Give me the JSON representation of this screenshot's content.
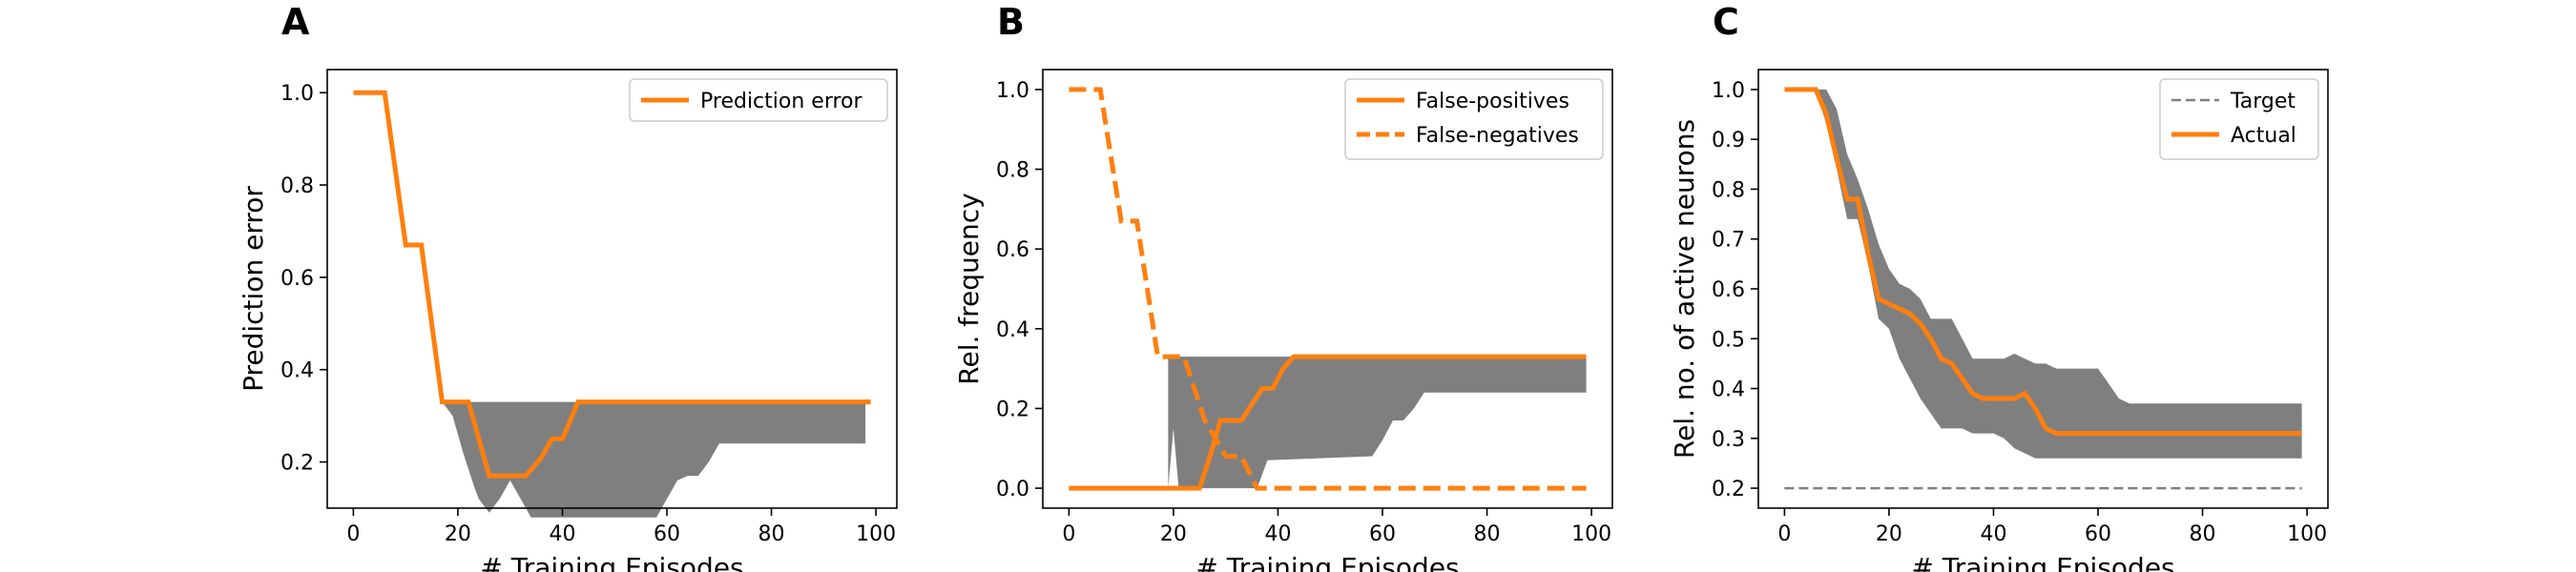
{
  "colors": {
    "series": "#ff7f0e",
    "band": "#7f7f7f",
    "target": "#808080"
  },
  "chart_data": [
    {
      "type": "line",
      "panel_label": "A",
      "xlabel": "# Training Episodes",
      "ylabel": "Prediction error",
      "xlim": [
        -5,
        104
      ],
      "ylim": [
        0.1,
        1.05
      ],
      "xticks": [
        0,
        20,
        40,
        60,
        80,
        100
      ],
      "yticks": [
        0.2,
        0.4,
        0.6,
        0.8,
        1.0
      ],
      "ytick_labels": [
        "0.2",
        "0.4",
        "0.6",
        "0.8",
        "1.0"
      ],
      "legend_position": "top-right",
      "bands": [
        {
          "x": [
            17,
            19,
            21,
            23,
            24,
            26,
            28,
            30,
            32,
            34,
            36,
            38,
            40,
            42,
            44,
            46,
            48,
            58,
            60,
            62,
            64,
            66,
            68,
            70,
            72,
            98
          ],
          "lower": [
            0.33,
            0.3,
            0.22,
            0.15,
            0.12,
            0.09,
            0.12,
            0.16,
            0.12,
            0.08,
            0.08,
            0.08,
            0.08,
            0.08,
            0.08,
            0.08,
            0.08,
            0.08,
            0.12,
            0.16,
            0.17,
            0.17,
            0.2,
            0.24,
            0.24,
            0.24
          ],
          "upper": [
            0.33,
            0.33,
            0.33,
            0.33,
            0.33,
            0.33,
            0.33,
            0.33,
            0.33,
            0.33,
            0.33,
            0.33,
            0.33,
            0.33,
            0.33,
            0.33,
            0.33,
            0.33,
            0.33,
            0.33,
            0.33,
            0.33,
            0.33,
            0.33,
            0.33,
            0.33
          ]
        }
      ],
      "series": [
        {
          "name": "Prediction error",
          "style": "solid",
          "x": [
            0,
            6,
            10,
            13,
            15,
            17,
            22,
            26,
            28,
            30,
            33,
            36,
            38,
            40,
            43,
            99
          ],
          "y": [
            1.0,
            1.0,
            0.67,
            0.67,
            0.5,
            0.33,
            0.33,
            0.17,
            0.17,
            0.17,
            0.17,
            0.21,
            0.25,
            0.25,
            0.33,
            0.33
          ]
        }
      ]
    },
    {
      "type": "line",
      "panel_label": "B",
      "xlabel": "# Training Episodes",
      "ylabel": "Rel. frequency",
      "xlim": [
        -5,
        104
      ],
      "ylim": [
        -0.05,
        1.05
      ],
      "xticks": [
        0,
        20,
        40,
        60,
        80,
        100
      ],
      "yticks": [
        0.0,
        0.2,
        0.4,
        0.6,
        0.8,
        1.0
      ],
      "ytick_labels": [
        "0.0",
        "0.2",
        "0.4",
        "0.6",
        "0.8",
        "1.0"
      ],
      "legend_position": "top-right",
      "bands": [
        {
          "x": [
            19,
            20,
            21,
            36,
            38,
            58,
            60,
            62,
            64,
            66,
            68,
            70,
            72,
            99
          ],
          "lower": [
            0.0,
            0.15,
            0.0,
            0.0,
            0.07,
            0.08,
            0.12,
            0.17,
            0.17,
            0.2,
            0.24,
            0.24,
            0.24,
            0.24
          ],
          "upper": [
            0.33,
            0.33,
            0.33,
            0.33,
            0.33,
            0.33,
            0.33,
            0.33,
            0.33,
            0.33,
            0.33,
            0.33,
            0.33,
            0.33
          ]
        }
      ],
      "series": [
        {
          "name": "False-positives",
          "style": "solid",
          "x": [
            0,
            25,
            27,
            29,
            31,
            33,
            35,
            37,
            39,
            41,
            43,
            99
          ],
          "y": [
            0.0,
            0.0,
            0.08,
            0.17,
            0.17,
            0.17,
            0.21,
            0.25,
            0.25,
            0.3,
            0.33,
            0.33
          ]
        },
        {
          "name": "False-negatives",
          "style": "dashed",
          "x": [
            0,
            6,
            10,
            13,
            15,
            17,
            22,
            26,
            30,
            33,
            36,
            99
          ],
          "y": [
            1.0,
            1.0,
            0.67,
            0.67,
            0.5,
            0.33,
            0.33,
            0.17,
            0.08,
            0.08,
            0.0,
            0.0
          ]
        }
      ]
    },
    {
      "type": "line",
      "panel_label": "C",
      "xlabel": "# Training Episodes",
      "ylabel": "Rel. no. of active neurons",
      "xlim": [
        -5,
        104
      ],
      "ylim": [
        0.16,
        1.04
      ],
      "xticks": [
        0,
        20,
        40,
        60,
        80,
        100
      ],
      "yticks": [
        0.2,
        0.3,
        0.4,
        0.5,
        0.6,
        0.7,
        0.8,
        0.9,
        1.0
      ],
      "ytick_labels": [
        "0.2",
        "0.3",
        "0.4",
        "0.5",
        "0.6",
        "0.7",
        "0.8",
        "0.9",
        "1.0"
      ],
      "legend_position": "top-right",
      "bands": [
        {
          "x": [
            0,
            6,
            8,
            10,
            12,
            14,
            16,
            18,
            20,
            22,
            24,
            26,
            28,
            30,
            32,
            34,
            36,
            38,
            40,
            42,
            44,
            46,
            48,
            50,
            52,
            56,
            60,
            62,
            64,
            66,
            68,
            99
          ],
          "lower": [
            1.0,
            1.0,
            0.93,
            0.84,
            0.74,
            0.74,
            0.65,
            0.54,
            0.52,
            0.46,
            0.42,
            0.38,
            0.35,
            0.32,
            0.32,
            0.32,
            0.31,
            0.31,
            0.31,
            0.3,
            0.28,
            0.27,
            0.26,
            0.26,
            0.26,
            0.26,
            0.26,
            0.26,
            0.26,
            0.26,
            0.26,
            0.26
          ],
          "upper": [
            1.0,
            1.0,
            1.0,
            0.96,
            0.87,
            0.82,
            0.76,
            0.69,
            0.64,
            0.61,
            0.6,
            0.58,
            0.54,
            0.54,
            0.54,
            0.5,
            0.46,
            0.46,
            0.46,
            0.46,
            0.47,
            0.46,
            0.45,
            0.45,
            0.44,
            0.44,
            0.44,
            0.41,
            0.38,
            0.37,
            0.37,
            0.37
          ]
        }
      ],
      "reference_lines": [
        {
          "name": "Target",
          "y": 0.2,
          "x": [
            0,
            99
          ]
        }
      ],
      "series": [
        {
          "name": "Actual",
          "style": "solid",
          "x": [
            0,
            6,
            8,
            10,
            12,
            14,
            16,
            18,
            20,
            22,
            24,
            26,
            28,
            30,
            32,
            34,
            36,
            38,
            40,
            42,
            44,
            46,
            48,
            50,
            52,
            54,
            56,
            58,
            60,
            99
          ],
          "y": [
            1.0,
            1.0,
            0.95,
            0.86,
            0.78,
            0.78,
            0.67,
            0.58,
            0.57,
            0.56,
            0.55,
            0.53,
            0.5,
            0.46,
            0.45,
            0.42,
            0.39,
            0.38,
            0.38,
            0.38,
            0.38,
            0.39,
            0.36,
            0.32,
            0.31,
            0.31,
            0.31,
            0.31,
            0.31,
            0.31
          ]
        }
      ]
    }
  ]
}
